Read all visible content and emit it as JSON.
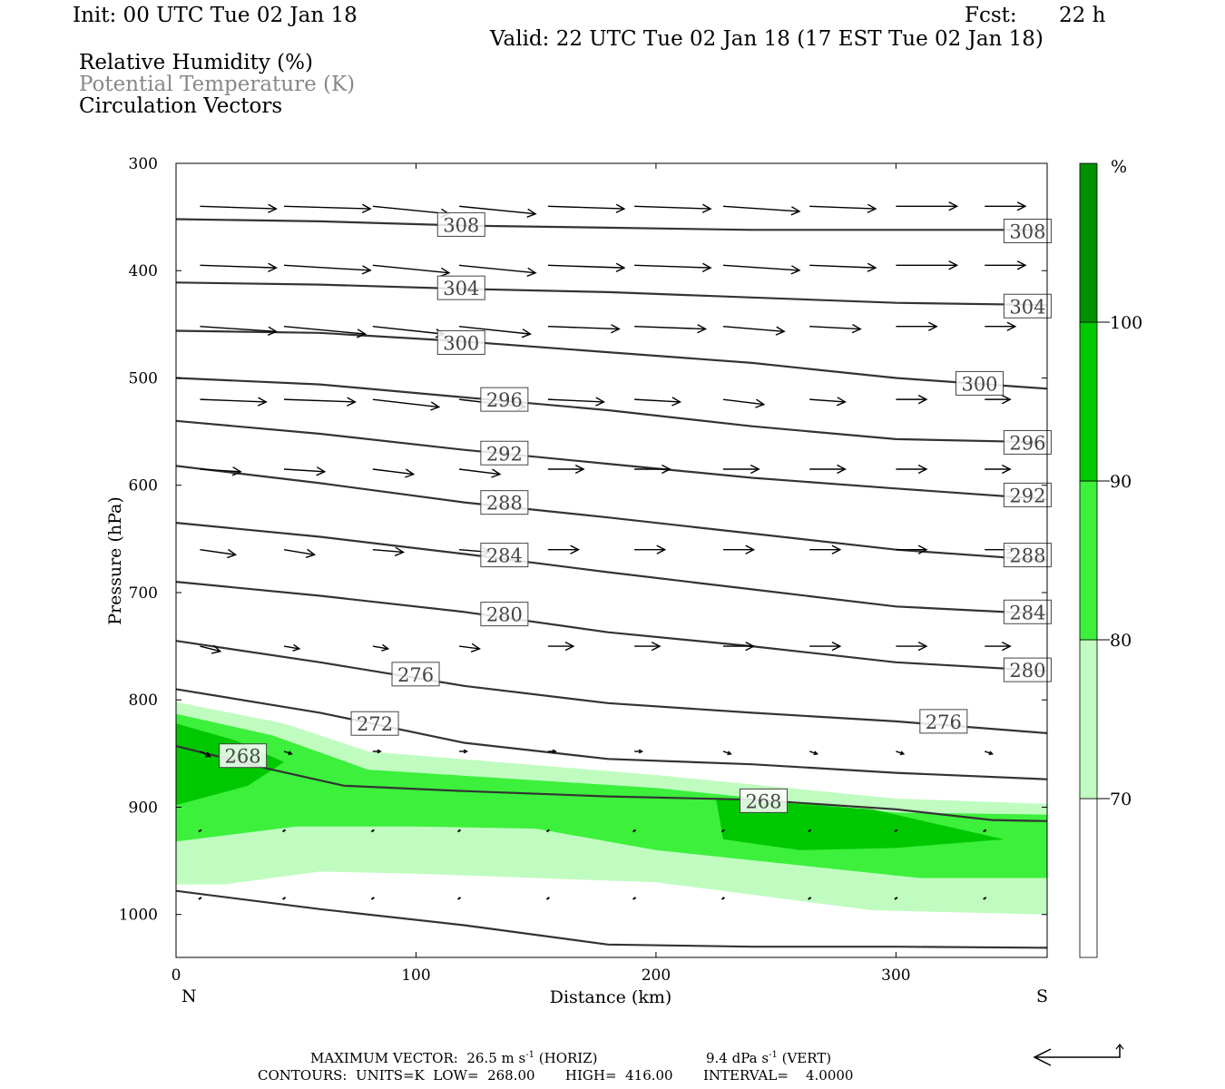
{
  "header": {
    "init": "Init: 00 UTC Tue 02 Jan 18",
    "fcst_label": "Fcst:",
    "fcst_value": "22 h",
    "valid": "Valid: 22 UTC Tue 02 Jan 18 (17 EST Tue 02 Jan 18)",
    "fields": [
      "Relative Humidity (%)",
      "Potential Temperature (K)",
      "Circulation Vectors"
    ]
  },
  "footer": {
    "max_vector_label": "MAXIMUM VECTOR:",
    "horiz": "26.5 m s",
    "horiz_exp": "-1",
    "horiz_tag": "(HORIZ)",
    "vert": "9.4 dPa s",
    "vert_exp": "-1",
    "vert_tag": "(VERT)",
    "contours": "CONTOURS:  UNITS=K  LOW=  268.00       HIGH=  416.00       INTERVAL=    4.0000"
  },
  "colors": {
    "rh_70": "#c0fcc0",
    "rh_80": "#3cf03c",
    "rh_90": "#00c800",
    "rh_100": "#009000",
    "theta": "#333333"
  },
  "chart_data": {
    "type": "cross-section",
    "xlabel": "Distance (km)",
    "ylabel": "Pressure (hPa)",
    "xlim": [
      0,
      363
    ],
    "ylim": [
      1040,
      300
    ],
    "x_ticks": [
      0,
      100,
      200,
      300
    ],
    "y_ticks": [
      300,
      400,
      500,
      600,
      700,
      800,
      900,
      1000
    ],
    "x_end_labels": {
      "left": "N",
      "right": "S"
    },
    "colorbar": {
      "unit": "%",
      "levels": [
        70,
        80,
        90,
        100
      ]
    },
    "rh_fill": [
      {
        "level": 70,
        "color": "#c0fcc0",
        "polygon": [
          [
            0,
            802
          ],
          [
            45,
            822
          ],
          [
            80,
            848
          ],
          [
            200,
            870
          ],
          [
            300,
            892
          ],
          [
            363,
            897
          ],
          [
            363,
            1000
          ],
          [
            290,
            996
          ],
          [
            200,
            970
          ],
          [
            100,
            962
          ],
          [
            60,
            960
          ],
          [
            20,
            972
          ],
          [
            0,
            972
          ]
        ]
      },
      {
        "level": 80,
        "color": "#3cf03c",
        "polygon": [
          [
            0,
            813
          ],
          [
            40,
            833
          ],
          [
            80,
            865
          ],
          [
            200,
            882
          ],
          [
            300,
            905
          ],
          [
            363,
            907
          ],
          [
            363,
            966
          ],
          [
            310,
            966
          ],
          [
            200,
            940
          ],
          [
            150,
            920
          ],
          [
            100,
            918
          ],
          [
            50,
            918
          ],
          [
            0,
            932
          ]
        ]
      },
      {
        "level": 90,
        "color": "#00c800",
        "polygon": [
          [
            0,
            822
          ],
          [
            25,
            838
          ],
          [
            45,
            858
          ],
          [
            30,
            880
          ],
          [
            0,
            898
          ]
        ]
      },
      {
        "level": 90,
        "color": "#00c800",
        "polygon": [
          [
            225,
            892
          ],
          [
            290,
            902
          ],
          [
            345,
            930
          ],
          [
            300,
            938
          ],
          [
            260,
            940
          ],
          [
            228,
            930
          ]
        ]
      }
    ],
    "theta_contours": [
      {
        "value": 308,
        "x": [
          0,
          60,
          120,
          180,
          240,
          300,
          363
        ],
        "p": [
          352,
          354,
          358,
          360,
          362,
          362,
          362
        ],
        "labels": [
          [
            109,
            357
          ],
          [
            345,
            363
          ]
        ]
      },
      {
        "value": 304,
        "x": [
          0,
          60,
          120,
          180,
          240,
          300,
          363
        ],
        "p": [
          411,
          413,
          417,
          420,
          425,
          430,
          432
        ],
        "labels": [
          [
            109,
            416
          ],
          [
            345,
            433
          ]
        ]
      },
      {
        "value": 300,
        "x": [
          0,
          60,
          120,
          180,
          240,
          300,
          363
        ],
        "p": [
          456,
          458,
          466,
          476,
          486,
          500,
          510
        ],
        "labels": [
          [
            109,
            467
          ],
          [
            325,
            505
          ]
        ]
      },
      {
        "value": 296,
        "x": [
          0,
          60,
          120,
          180,
          240,
          300,
          363
        ],
        "p": [
          500,
          506,
          518,
          530,
          545,
          557,
          560
        ],
        "labels": [
          [
            127,
            520
          ],
          [
            345,
            560
          ]
        ]
      },
      {
        "value": 292,
        "x": [
          0,
          60,
          120,
          180,
          240,
          300,
          363
        ],
        "p": [
          540,
          552,
          567,
          580,
          593,
          603,
          613
        ],
        "labels": [
          [
            127,
            570
          ],
          [
            345,
            609
          ]
        ]
      },
      {
        "value": 288,
        "x": [
          0,
          60,
          120,
          180,
          240,
          300,
          363
        ],
        "p": [
          582,
          598,
          616,
          630,
          645,
          660,
          670
        ],
        "labels": [
          [
            127,
            616
          ],
          [
            345,
            665
          ]
        ]
      },
      {
        "value": 284,
        "x": [
          0,
          60,
          120,
          180,
          240,
          300,
          363
        ],
        "p": [
          635,
          648,
          664,
          681,
          697,
          713,
          720
        ],
        "labels": [
          [
            127,
            665
          ],
          [
            345,
            718
          ]
        ]
      },
      {
        "value": 280,
        "x": [
          0,
          60,
          120,
          180,
          240,
          300,
          363
        ],
        "p": [
          690,
          703,
          718,
          737,
          750,
          765,
          773
        ],
        "labels": [
          [
            127,
            720
          ],
          [
            345,
            772
          ]
        ]
      },
      {
        "value": 276,
        "x": [
          0,
          60,
          120,
          180,
          240,
          300,
          363
        ],
        "p": [
          745,
          765,
          787,
          803,
          812,
          820,
          831
        ],
        "labels": [
          [
            90,
            776
          ],
          [
            310,
            820
          ]
        ]
      },
      {
        "value": 272,
        "x": [
          0,
          60,
          120,
          180,
          240,
          300,
          363
        ],
        "p": [
          790,
          812,
          840,
          855,
          860,
          868,
          874
        ],
        "labels": [
          [
            73,
            822
          ]
        ]
      },
      {
        "value": 268,
        "x": [
          0,
          40,
          70,
          120,
          180,
          240,
          300,
          340,
          363
        ],
        "p": [
          843,
          865,
          880,
          885,
          890,
          893,
          902,
          912,
          913
        ],
        "labels": [
          [
            18,
            852
          ],
          [
            235,
            894
          ]
        ]
      },
      {
        "value": null,
        "x": [
          0,
          60,
          120,
          180,
          240,
          300,
          363
        ],
        "p": [
          978,
          995,
          1010,
          1028,
          1030,
          1030,
          1031
        ],
        "labels": []
      }
    ],
    "vector_columns_x": [
      10,
      45,
      82,
      118,
      155,
      191,
      228,
      264,
      300,
      337
    ],
    "vectors": [
      {
        "p": 340,
        "u": [
          30,
          34,
          30,
          30,
          30,
          30,
          30,
          26,
          24,
          16
        ],
        "w": [
          -1,
          -1,
          -3,
          -3,
          -1,
          -1,
          -2,
          -1,
          0,
          0
        ]
      },
      {
        "p": 395,
        "u": [
          30,
          34,
          30,
          30,
          30,
          30,
          30,
          26,
          24,
          16
        ],
        "w": [
          -1,
          -2,
          -3,
          -3,
          -1,
          -1,
          -2,
          -1,
          0,
          0
        ]
      },
      {
        "p": 452,
        "u": [
          30,
          32,
          28,
          28,
          28,
          28,
          24,
          20,
          16,
          12
        ],
        "w": [
          -2,
          -3,
          -3,
          -3,
          -1,
          -1,
          -2,
          -1,
          0,
          0
        ]
      },
      {
        "p": 520,
        "u": [
          26,
          28,
          26,
          26,
          22,
          18,
          16,
          14,
          12,
          10
        ],
        "w": [
          -1,
          -1,
          -3,
          -3,
          -1,
          -1,
          -2,
          -1,
          0,
          0
        ]
      },
      {
        "p": 585,
        "u": [
          16,
          16,
          16,
          16,
          14,
          14,
          14,
          14,
          12,
          10
        ],
        "w": [
          -1,
          -1,
          -2,
          -2,
          0,
          0,
          0,
          0,
          0,
          0
        ]
      },
      {
        "p": 660,
        "u": [
          14,
          12,
          12,
          12,
          12,
          12,
          12,
          12,
          12,
          12
        ],
        "w": [
          -2,
          -2,
          -1,
          -1,
          0,
          0,
          0,
          0,
          0,
          0
        ]
      },
      {
        "p": 750,
        "u": [
          8,
          6,
          6,
          8,
          10,
          10,
          12,
          12,
          12,
          10
        ],
        "w": [
          -2,
          -1,
          -1,
          -1,
          0,
          0,
          0,
          0,
          0,
          0
        ]
      },
      {
        "p": 848,
        "u": [
          4,
          3,
          3,
          3,
          3,
          3,
          3,
          3,
          3,
          3
        ],
        "w": [
          -2,
          -1,
          0,
          0,
          0,
          0,
          -1,
          -1,
          -1,
          -1
        ]
      },
      {
        "p": 922,
        "u": [
          0,
          0,
          0,
          0,
          0,
          0,
          0,
          0,
          0,
          0
        ],
        "w": [
          0,
          0,
          0,
          0,
          0,
          0,
          0,
          0,
          0,
          0
        ]
      },
      {
        "p": 985,
        "u": [
          0,
          0,
          0,
          0,
          0,
          0,
          0,
          0,
          0,
          0
        ],
        "w": [
          0,
          0,
          0,
          0,
          0,
          0,
          0,
          0,
          0,
          0
        ]
      }
    ]
  }
}
